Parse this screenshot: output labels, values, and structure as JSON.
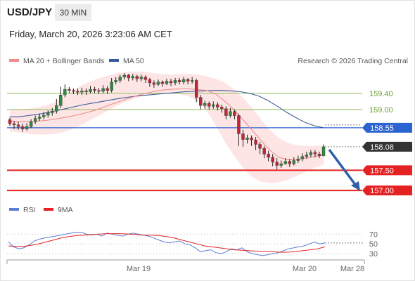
{
  "header": {
    "pair": "USD/JPY",
    "timeframe": "30 MIN",
    "datetime": "Friday, March 20, 2026 3:23:06 AM CET"
  },
  "legend": {
    "ma20": "MA 20 + Bollinger Bands",
    "ma50": "MA 50",
    "credit": "Research © 2026 Trading Central",
    "rsi": "RSI",
    "rsi_ma": "9MA"
  },
  "colors": {
    "ma20": "#f08c8c",
    "ma50": "#3a5a9a",
    "band": "#fde0e0",
    "up": "#2e8b3e",
    "down": "#c4243a",
    "support": "#e52222",
    "pivot": "#2b63d0",
    "resistance": "#8fbe5a",
    "last": "#333333",
    "rsi": "#5b7fd6",
    "rsi_ma": "#e52222"
  },
  "chart_data": {
    "type": "candlestick",
    "x_ticks": [
      "Mar 19",
      "Mar 20",
      "Mar 28"
    ],
    "y_range": [
      156.76,
      159.97
    ],
    "levels": [
      {
        "value": 159.4,
        "label": "159.40",
        "kind": "resistance"
      },
      {
        "value": 159.0,
        "label": "159.00",
        "kind": "resistance"
      },
      {
        "value": 158.55,
        "label": "158.55",
        "kind": "pivot"
      },
      {
        "value": 158.08,
        "label": "158.08",
        "kind": "last"
      },
      {
        "value": 157.5,
        "label": "157.50",
        "kind": "support"
      },
      {
        "value": 157.0,
        "label": "157.00",
        "kind": "support"
      }
    ],
    "candles": [
      [
        158.75,
        158.65,
        158.8,
        158.6
      ],
      [
        158.65,
        158.62,
        158.72,
        158.52
      ],
      [
        158.62,
        158.58,
        158.7,
        158.5
      ],
      [
        158.58,
        158.52,
        158.65,
        158.45
      ],
      [
        158.52,
        158.58,
        158.66,
        158.48
      ],
      [
        158.58,
        158.7,
        158.76,
        158.54
      ],
      [
        158.7,
        158.78,
        158.85,
        158.64
      ],
      [
        158.78,
        158.82,
        158.9,
        158.72
      ],
      [
        158.82,
        158.86,
        158.94,
        158.76
      ],
      [
        158.86,
        158.92,
        158.98,
        158.8
      ],
      [
        158.92,
        158.96,
        159.04,
        158.85
      ],
      [
        158.96,
        159.1,
        159.26,
        158.9
      ],
      [
        159.1,
        159.36,
        159.56,
        159.04
      ],
      [
        159.36,
        159.5,
        159.62,
        159.3
      ],
      [
        159.5,
        159.47,
        159.56,
        159.4
      ],
      [
        159.47,
        159.45,
        159.52,
        159.38
      ],
      [
        159.45,
        159.43,
        159.52,
        159.36
      ],
      [
        159.43,
        159.46,
        159.54,
        159.36
      ],
      [
        159.46,
        159.44,
        159.52,
        159.36
      ],
      [
        159.44,
        159.5,
        159.58,
        159.4
      ],
      [
        159.5,
        159.47,
        159.56,
        159.4
      ],
      [
        159.47,
        159.45,
        159.53,
        159.38
      ],
      [
        159.45,
        159.52,
        159.6,
        159.4
      ],
      [
        159.52,
        159.47,
        159.58,
        159.38
      ],
      [
        159.47,
        159.68,
        159.78,
        159.42
      ],
      [
        159.68,
        159.72,
        159.8,
        159.62
      ],
      [
        159.72,
        159.8,
        159.86,
        159.66
      ],
      [
        159.8,
        159.85,
        159.9,
        159.74
      ],
      [
        159.85,
        159.78,
        159.88,
        159.7
      ],
      [
        159.78,
        159.82,
        159.88,
        159.72
      ],
      [
        159.82,
        159.76,
        159.86,
        159.68
      ],
      [
        159.76,
        159.8,
        159.86,
        159.7
      ],
      [
        159.8,
        159.74,
        159.84,
        159.66
      ],
      [
        159.74,
        159.66,
        159.78,
        159.56
      ],
      [
        159.66,
        159.62,
        159.72,
        159.54
      ],
      [
        159.62,
        159.68,
        159.74,
        159.58
      ],
      [
        159.68,
        159.64,
        159.72,
        159.56
      ],
      [
        159.64,
        159.7,
        159.76,
        159.6
      ],
      [
        159.7,
        159.66,
        159.76,
        159.58
      ],
      [
        159.66,
        159.72,
        159.78,
        159.6
      ],
      [
        159.72,
        159.68,
        159.78,
        159.62
      ],
      [
        159.68,
        159.74,
        159.8,
        159.62
      ],
      [
        159.74,
        159.7,
        159.78,
        159.62
      ],
      [
        159.7,
        159.72,
        159.8,
        159.64
      ],
      [
        159.72,
        159.3,
        159.76,
        159.18
      ],
      [
        159.3,
        159.1,
        159.36,
        159.0
      ],
      [
        159.1,
        159.15,
        159.22,
        159.02
      ],
      [
        159.15,
        159.08,
        159.2,
        159.0
      ],
      [
        159.08,
        159.12,
        159.2,
        159.02
      ],
      [
        159.12,
        159.06,
        159.18,
        158.98
      ],
      [
        159.06,
        159.02,
        159.12,
        158.92
      ],
      [
        159.02,
        158.85,
        159.08,
        158.76
      ],
      [
        158.85,
        158.95,
        159.04,
        158.8
      ],
      [
        158.95,
        158.85,
        159.0,
        158.76
      ],
      [
        158.85,
        158.4,
        158.9,
        158.1
      ],
      [
        158.4,
        158.26,
        158.5,
        158.08
      ],
      [
        158.26,
        158.3,
        158.38,
        158.16
      ],
      [
        158.3,
        158.25,
        158.36,
        158.1
      ],
      [
        158.25,
        158.14,
        158.32,
        158.0
      ],
      [
        158.14,
        158.04,
        158.2,
        157.9
      ],
      [
        158.04,
        157.9,
        158.1,
        157.8
      ],
      [
        157.9,
        157.82,
        157.98,
        157.72
      ],
      [
        157.82,
        157.7,
        157.9,
        157.6
      ],
      [
        157.7,
        157.62,
        157.8,
        157.52
      ],
      [
        157.62,
        157.66,
        157.74,
        157.56
      ],
      [
        157.66,
        157.72,
        157.8,
        157.64
      ],
      [
        157.72,
        157.66,
        157.78,
        157.58
      ],
      [
        157.66,
        157.74,
        157.82,
        157.62
      ],
      [
        157.74,
        157.78,
        157.86,
        157.68
      ],
      [
        157.78,
        157.84,
        157.92,
        157.72
      ],
      [
        157.84,
        157.88,
        157.96,
        157.78
      ],
      [
        157.88,
        157.94,
        158.0,
        157.82
      ],
      [
        157.94,
        157.9,
        158.0,
        157.82
      ],
      [
        157.9,
        157.86,
        157.96,
        157.8
      ],
      [
        157.86,
        158.08,
        158.14,
        157.84
      ]
    ],
    "ma20": [
      158.72,
      158.7,
      158.7,
      158.71,
      158.73,
      158.76,
      158.8,
      158.84,
      158.89,
      158.95,
      159.02,
      159.1,
      159.18,
      159.26,
      159.33,
      159.39,
      159.44,
      159.48,
      159.5,
      159.51,
      159.51,
      159.49,
      159.47,
      159.38,
      159.2,
      159.0,
      158.75,
      158.5,
      158.24,
      158.0,
      157.82,
      157.76,
      157.77,
      157.8,
      157.84,
      157.88
    ],
    "ma50": [
      158.82,
      158.82,
      158.85,
      158.88,
      158.92,
      158.97,
      159.02,
      159.07,
      159.12,
      159.16,
      159.2,
      159.24,
      159.28,
      159.31,
      159.34,
      159.36,
      159.38,
      159.4,
      159.42,
      159.44,
      159.45,
      159.46,
      159.47,
      159.47,
      159.46,
      159.44,
      159.4,
      159.33,
      159.22,
      159.08,
      158.93,
      158.8,
      158.68,
      158.6,
      158.55
    ],
    "band_upper": [
      158.98,
      159.0,
      159.02,
      159.05,
      159.1,
      159.18,
      159.3,
      159.45,
      159.6,
      159.7,
      159.78,
      159.84,
      159.9,
      159.93,
      159.94,
      159.93,
      159.9,
      159.88,
      159.86,
      159.88,
      159.88,
      159.86,
      159.82,
      159.76,
      159.66,
      159.5,
      159.3,
      159.04,
      158.76,
      158.5,
      158.3,
      158.18,
      158.12,
      158.1,
      158.1,
      158.12
    ],
    "band_lower": [
      158.46,
      158.44,
      158.4,
      158.38,
      158.38,
      158.4,
      158.44,
      158.52,
      158.62,
      158.74,
      158.86,
      158.98,
      159.1,
      159.2,
      159.28,
      159.34,
      159.38,
      159.4,
      159.4,
      159.38,
      159.32,
      159.2,
      158.96,
      158.6,
      158.2,
      157.86,
      157.56,
      157.34,
      157.22,
      157.18,
      157.2,
      157.26,
      157.36,
      157.46,
      157.56,
      157.64
    ],
    "rsi": {
      "ticks": [
        "70",
        "50",
        "30"
      ],
      "rsi": [
        54,
        44,
        40,
        42,
        48,
        56,
        60,
        62,
        64,
        66,
        68,
        70,
        72,
        74,
        74,
        70,
        68,
        70,
        66,
        72,
        70,
        68,
        66,
        70,
        72,
        70,
        68,
        66,
        62,
        58,
        54,
        52,
        54,
        56,
        50,
        48,
        42,
        34,
        36,
        38,
        32,
        30,
        34,
        40,
        38,
        42,
        34,
        30,
        28,
        26,
        28,
        30,
        32,
        36,
        40,
        42,
        44,
        46,
        50,
        54,
        50,
        52
      ],
      "ma": [
        46,
        45,
        45,
        47,
        50,
        54,
        58,
        62,
        65,
        67,
        68,
        69,
        70,
        71,
        71,
        71,
        70,
        69,
        68,
        68,
        67,
        65,
        62,
        58,
        54,
        50,
        46,
        44,
        42,
        40,
        38,
        37,
        36,
        35,
        35,
        34,
        33,
        33,
        34,
        36,
        38,
        40,
        44
      ]
    }
  }
}
